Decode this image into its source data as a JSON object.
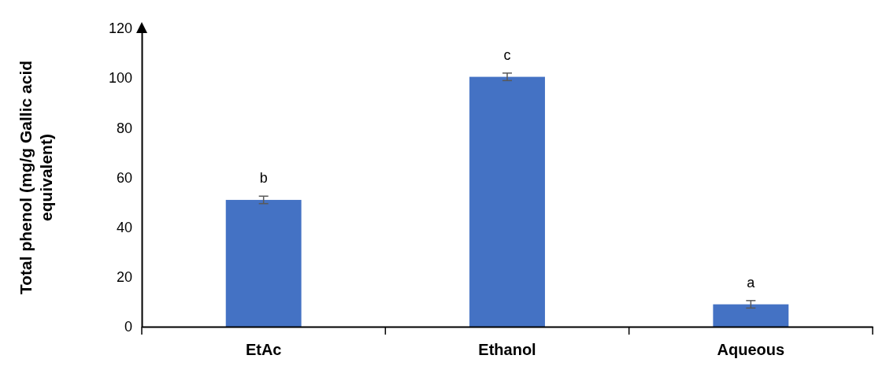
{
  "chart_data": {
    "type": "bar",
    "ylabel": "Total phenol (mg/g Gallic acid equivalent)",
    "categories": [
      "EtAc",
      "Ethanol",
      "Aqueous"
    ],
    "values": [
      51,
      100.5,
      9
    ],
    "errors": [
      1.5,
      1.5,
      1.5
    ],
    "color": "#4472c4",
    "ylim": [
      0,
      120
    ],
    "yticks": [
      0,
      20,
      40,
      60,
      80,
      100,
      120
    ],
    "annotations": [
      "b",
      "c",
      "a"
    ]
  }
}
